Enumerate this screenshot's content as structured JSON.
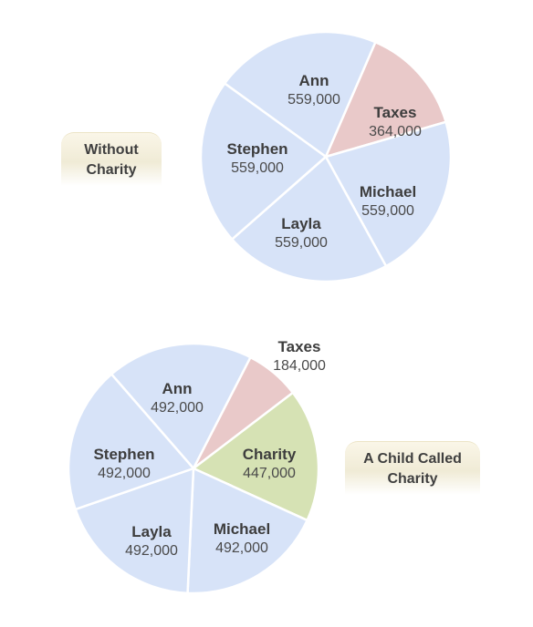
{
  "colors": {
    "person": "#d7e3f8",
    "taxes": "#e9c9c9",
    "charity": "#d6e2b4",
    "label_text": "#3d3d3d"
  },
  "tags": {
    "without": {
      "line1": "Without",
      "line2": "Charity"
    },
    "with": {
      "line1": "A Child Called",
      "line2": "Charity"
    }
  },
  "chart_data": [
    {
      "type": "pie",
      "title": "",
      "slices": [
        {
          "label": "Ann",
          "value": 559000,
          "display": "559,000",
          "color_key": "person"
        },
        {
          "label": "Taxes",
          "value": 364000,
          "display": "364,000",
          "color_key": "taxes"
        },
        {
          "label": "Michael",
          "value": 559000,
          "display": "559,000",
          "color_key": "person"
        },
        {
          "label": "Layla",
          "value": 559000,
          "display": "559,000",
          "color_key": "person"
        },
        {
          "label": "Stephen",
          "value": 559000,
          "display": "559,000",
          "color_key": "person"
        }
      ]
    },
    {
      "type": "pie",
      "title": "",
      "slices": [
        {
          "label": "Ann",
          "value": 492000,
          "display": "492,000",
          "color_key": "person"
        },
        {
          "label": "Taxes",
          "value": 184000,
          "display": "184,000",
          "color_key": "taxes"
        },
        {
          "label": "Charity",
          "value": 447000,
          "display": "447,000",
          "color_key": "charity"
        },
        {
          "label": "Michael",
          "value": 492000,
          "display": "492,000",
          "color_key": "person"
        },
        {
          "label": "Layla",
          "value": 492000,
          "display": "492,000",
          "color_key": "person"
        },
        {
          "label": "Stephen",
          "value": 492000,
          "display": "492,000",
          "color_key": "person"
        }
      ]
    }
  ]
}
